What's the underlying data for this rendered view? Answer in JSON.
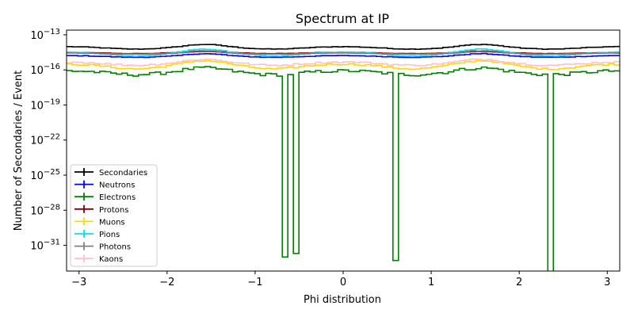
{
  "chart_data": {
    "type": "line",
    "title": "Spectrum at IP",
    "xlabel": "Phi distribution",
    "ylabel": "Number of Secondaries / Event",
    "xlim": [
      -3.14159,
      3.14159
    ],
    "ylim_log10": [
      -33.2,
      -12.6
    ],
    "yscale": "log",
    "grid": false,
    "legend_position": "lower-left",
    "x_ticks": [
      -3,
      -2,
      -1,
      0,
      1,
      2,
      3
    ],
    "x_tick_labels": [
      "−3",
      "−2",
      "−1",
      "0",
      "1",
      "2",
      "3"
    ],
    "y_ticks_log10": [
      -31,
      -28,
      -25,
      -22,
      -19,
      -16,
      -13
    ],
    "y_tick_labels": [
      {
        "base": "10",
        "exp": "−31"
      },
      {
        "base": "10",
        "exp": "−28"
      },
      {
        "base": "10",
        "exp": "−25"
      },
      {
        "base": "10",
        "exp": "−22"
      },
      {
        "base": "10",
        "exp": "−19"
      },
      {
        "base": "10",
        "exp": "−16"
      },
      {
        "base": "10",
        "exp": "−13"
      }
    ],
    "series": [
      {
        "name": "Secondaries",
        "color": "#000000",
        "base": 6e-15,
        "peak": 1.5e-14,
        "noise": 0.05,
        "dips": []
      },
      {
        "name": "Neutrons",
        "color": "#0000ff",
        "base": 1.2e-15,
        "peak": 2.4e-15,
        "noise": 0.05,
        "dips": []
      },
      {
        "name": "Electrons",
        "color": "#008000",
        "base": 4e-17,
        "peak": 1.5e-16,
        "noise": 0.3,
        "dips": [
          {
            "x": -0.68,
            "y": 1e-32
          },
          {
            "x": -0.52,
            "y": 2e-32
          },
          {
            "x": 0.6,
            "y": 5e-33
          },
          {
            "x": 2.37,
            "y": 1e-34
          }
        ]
      },
      {
        "name": "Protons",
        "color": "#800000",
        "base": 2.5e-15,
        "peak": 4e-15,
        "noise": 0.03,
        "dips": []
      },
      {
        "name": "Muons",
        "color": "#ffd700",
        "base": 1.2e-16,
        "peak": 6e-16,
        "noise": 0.15,
        "dips": []
      },
      {
        "name": "Pions",
        "color": "#00e5ee",
        "base": 1.5e-15,
        "peak": 6e-15,
        "noise": 0.05,
        "dips": []
      },
      {
        "name": "Photons",
        "color": "#808080",
        "base": 2.2e-15,
        "peak": 3.5e-15,
        "noise": 0.02,
        "dips": []
      },
      {
        "name": "Kaons",
        "color": "#ffc0cb",
        "base": 2.5e-16,
        "peak": 8e-16,
        "noise": 0.15,
        "dips": []
      }
    ]
  }
}
